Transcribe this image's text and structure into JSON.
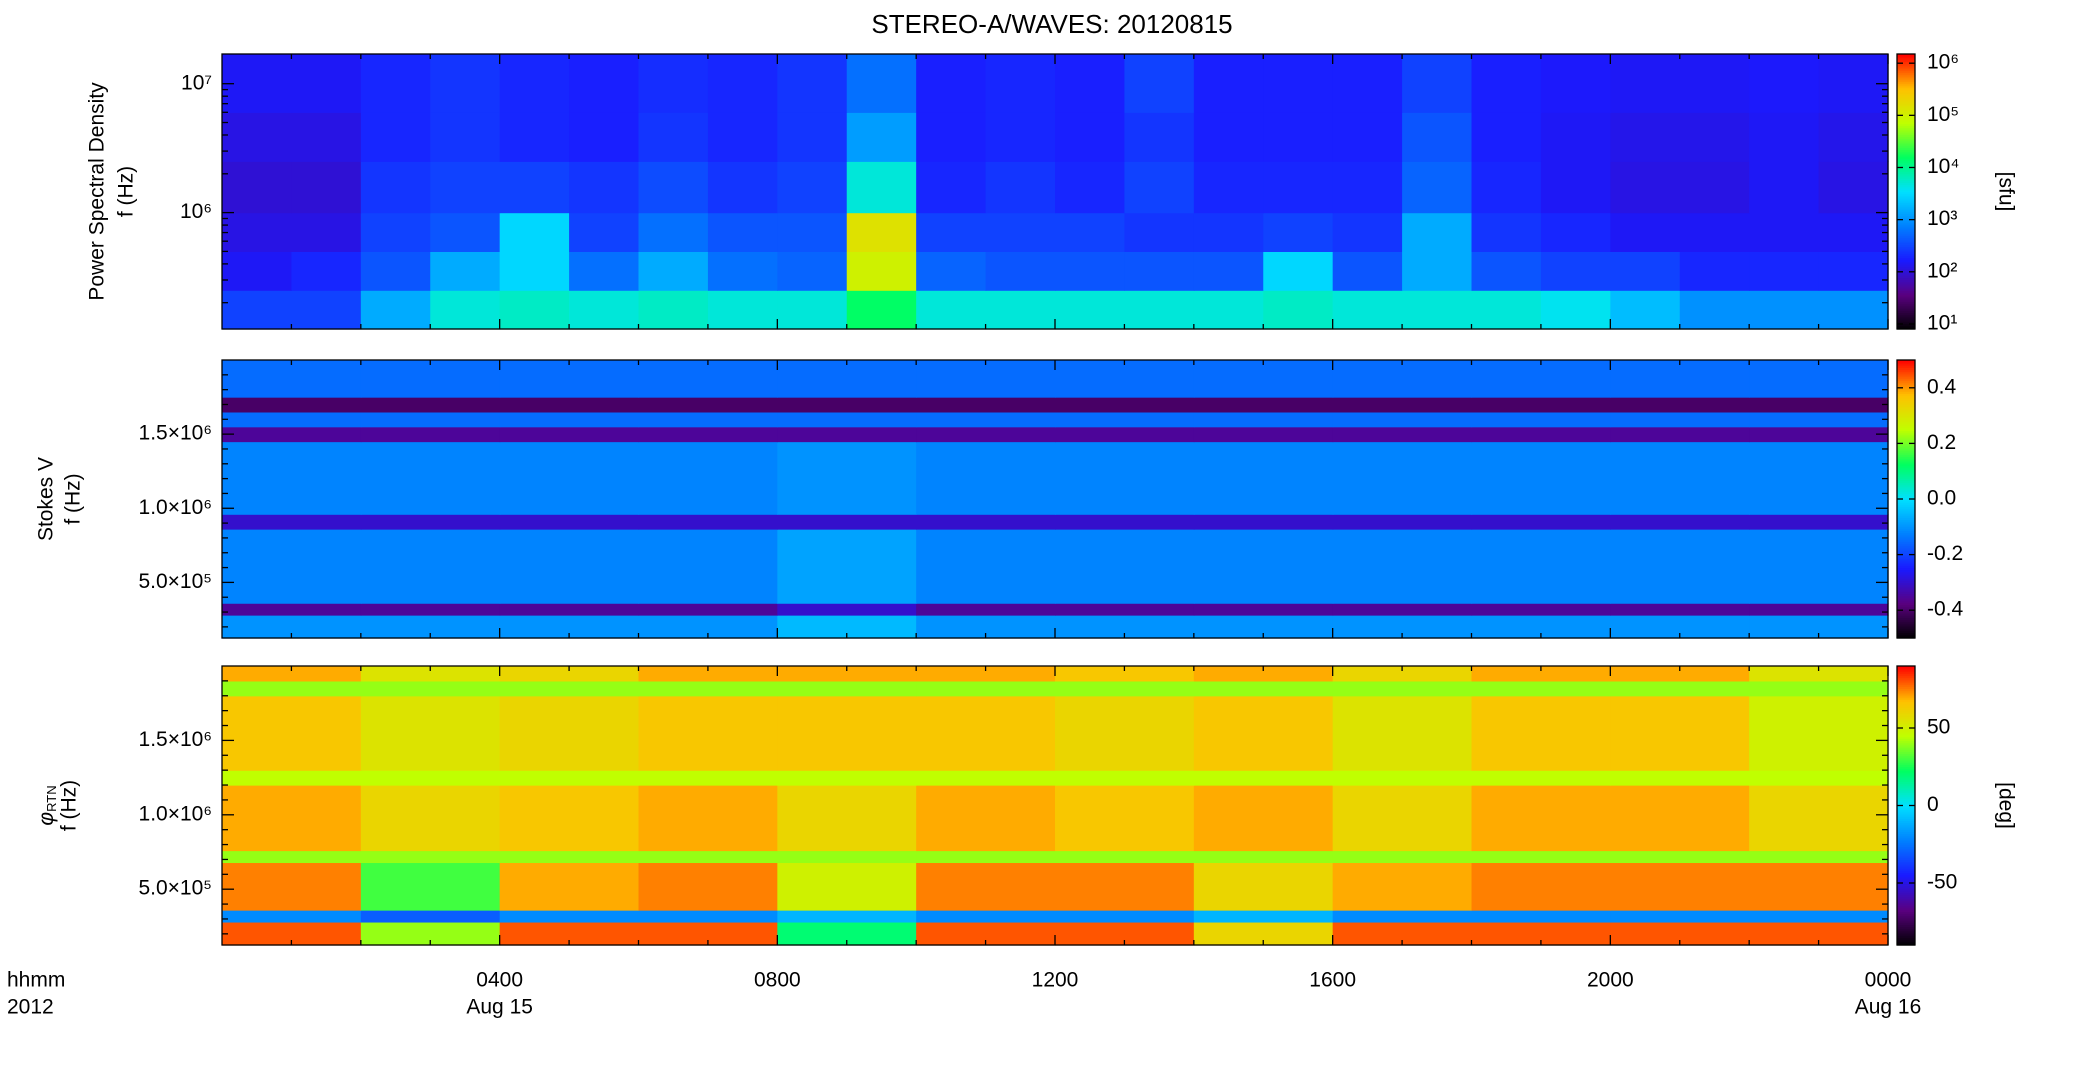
{
  "title": "STEREO-A/WAVES: 20120815",
  "chart_data": [
    {
      "type": "heatmap",
      "ylabel": "Power Spectral Density",
      "yunit": "f (Hz)",
      "xlim": [
        0,
        24
      ],
      "xticks": [
        4,
        8,
        12,
        16,
        20,
        24
      ],
      "ylog": true,
      "ylim": [
        125000,
        17000000
      ],
      "yticks": [
        {
          "value": 1000000,
          "label": "10⁶"
        },
        {
          "value": 10000000,
          "label": "10⁷"
        }
      ],
      "zlog": true,
      "zlim": [
        8,
        1500000
      ],
      "zticks": [
        {
          "value": 10,
          "label": "10¹"
        },
        {
          "value": 100,
          "label": "10²"
        },
        {
          "value": 1000,
          "label": "10³"
        },
        {
          "value": 10000,
          "label": "10⁴"
        },
        {
          "value": 100000,
          "label": "10⁵"
        },
        {
          "value": 1000000,
          "label": "10⁶"
        }
      ],
      "zlabel": "[sfu]",
      "colormap": [
        "#000000",
        "#5a0080",
        "#1a1aff",
        "#0080ff",
        "#00e0ff",
        "#00ff60",
        "#c0ff00",
        "#ffc000",
        "#ff0000"
      ],
      "x_bins": [
        0,
        1,
        2,
        3,
        4,
        5,
        6,
        7,
        8,
        9,
        10,
        11,
        12,
        13,
        14,
        15,
        16,
        17,
        18,
        19,
        20,
        21,
        22,
        23,
        24
      ],
      "y_bins": [
        125000,
        250000,
        500000,
        1000000,
        2500000,
        6000000,
        17000000
      ],
      "z": [
        [
          300,
          300,
          1500,
          5000,
          6000,
          5000,
          6000,
          5000,
          5000,
          15000,
          5000,
          5000,
          5000,
          5000,
          5000,
          6000,
          5000,
          5000,
          5000,
          4000,
          2000,
          1000,
          1000,
          1000
        ],
        [
          150,
          200,
          400,
          1500,
          3000,
          600,
          1500,
          600,
          500,
          100000,
          500,
          400,
          400,
          400,
          400,
          3000,
          400,
          1500,
          400,
          300,
          300,
          200,
          200,
          200
        ],
        [
          120,
          120,
          300,
          400,
          3000,
          300,
          600,
          400,
          400,
          150000,
          300,
          300,
          300,
          250,
          250,
          300,
          250,
          1500,
          250,
          200,
          150,
          150,
          150,
          150
        ],
        [
          100,
          100,
          250,
          300,
          300,
          250,
          350,
          250,
          300,
          5000,
          200,
          250,
          200,
          300,
          200,
          200,
          200,
          500,
          200,
          150,
          120,
          120,
          150,
          120
        ],
        [
          120,
          120,
          200,
          250,
          200,
          180,
          250,
          200,
          250,
          1200,
          180,
          200,
          180,
          250,
          180,
          180,
          180,
          400,
          180,
          150,
          130,
          130,
          150,
          130
        ],
        [
          150,
          150,
          200,
          250,
          200,
          180,
          220,
          200,
          250,
          600,
          180,
          200,
          180,
          300,
          180,
          180,
          180,
          300,
          180,
          160,
          150,
          150,
          160,
          150
        ]
      ]
    },
    {
      "type": "heatmap",
      "ylabel": "Stokes V",
      "yunit": "f (Hz)",
      "xlim": [
        0,
        24
      ],
      "xticks": [
        4,
        8,
        12,
        16,
        20,
        24
      ],
      "ylog": false,
      "ylim": [
        125000,
        2000000
      ],
      "yticks": [
        {
          "value": 500000,
          "label": "5.0×10⁵"
        },
        {
          "value": 1000000,
          "label": "1.0×10⁶"
        },
        {
          "value": 1500000,
          "label": "1.5×10⁶"
        }
      ],
      "zlog": false,
      "zlim": [
        -0.5,
        0.5
      ],
      "zticks": [
        -0.4,
        -0.2,
        {
          "value": 0,
          "label": "0.0"
        },
        0.2,
        0.4
      ],
      "colormap": [
        "#000000",
        "#5a0080",
        "#1a1aff",
        "#0080ff",
        "#00e0ff",
        "#00ff60",
        "#c0ff00",
        "#ffc000",
        "#ff0000"
      ],
      "x_bins": [
        0,
        2,
        4,
        6,
        8,
        10,
        12,
        14,
        16,
        18,
        20,
        22,
        24
      ],
      "y_bins": [
        125000,
        280000,
        360000,
        860000,
        960000,
        1450000,
        1550000,
        1650000,
        1750000,
        2000000
      ],
      "z": [
        [
          -0.1,
          -0.1,
          -0.1,
          -0.1,
          -0.05,
          -0.1,
          -0.1,
          -0.1,
          -0.1,
          -0.1,
          -0.1,
          -0.1
        ],
        [
          -0.35,
          -0.35,
          -0.35,
          -0.35,
          -0.3,
          -0.35,
          -0.35,
          -0.35,
          -0.35,
          -0.35,
          -0.35,
          -0.35
        ],
        [
          -0.12,
          -0.12,
          -0.12,
          -0.12,
          -0.08,
          -0.12,
          -0.12,
          -0.12,
          -0.12,
          -0.12,
          -0.12,
          -0.12
        ],
        [
          -0.3,
          -0.3,
          -0.3,
          -0.3,
          -0.3,
          -0.3,
          -0.3,
          -0.3,
          -0.3,
          -0.3,
          -0.3,
          -0.3
        ],
        [
          -0.12,
          -0.12,
          -0.12,
          -0.12,
          -0.1,
          -0.12,
          -0.12,
          -0.12,
          -0.12,
          -0.12,
          -0.12,
          -0.12
        ],
        [
          -0.35,
          -0.35,
          -0.35,
          -0.35,
          -0.35,
          -0.35,
          -0.35,
          -0.35,
          -0.35,
          -0.35,
          -0.35,
          -0.35
        ],
        [
          -0.15,
          -0.15,
          -0.15,
          -0.15,
          -0.15,
          -0.15,
          -0.15,
          -0.15,
          -0.15,
          -0.15,
          -0.15,
          -0.15
        ],
        [
          -0.4,
          -0.4,
          -0.4,
          -0.4,
          -0.4,
          -0.4,
          -0.4,
          -0.4,
          -0.4,
          -0.4,
          -0.4,
          -0.4
        ],
        [
          -0.15,
          -0.15,
          -0.15,
          -0.15,
          -0.15,
          -0.15,
          -0.15,
          -0.15,
          -0.15,
          -0.15,
          -0.15,
          -0.15
        ]
      ]
    },
    {
      "type": "heatmap",
      "ylabel_symbol": "φ",
      "ylabel_subscript": "RTN",
      "yunit": "f (Hz)",
      "xlim": [
        0,
        24
      ],
      "xticks": [
        {
          "value": 4,
          "label": "0400"
        },
        {
          "value": 8,
          "label": "0800"
        },
        {
          "value": 12,
          "label": "1200"
        },
        {
          "value": 16,
          "label": "1600"
        },
        {
          "value": 20,
          "label": "2000"
        },
        {
          "value": 24,
          "label": "0000"
        }
      ],
      "date_labels": [
        {
          "value": 4,
          "label": "Aug 15"
        },
        {
          "value": 24,
          "label": "Aug 16"
        }
      ],
      "xlabel_lines": [
        "hhmm",
        "2012"
      ],
      "ylog": false,
      "ylim": [
        125000,
        2000000
      ],
      "yticks": [
        {
          "value": 500000,
          "label": "5.0×10⁵"
        },
        {
          "value": 1000000,
          "label": "1.0×10⁶"
        },
        {
          "value": 1500000,
          "label": "1.5×10⁶"
        }
      ],
      "zlog": false,
      "zlim": [
        -90,
        90
      ],
      "zticks": [
        -50,
        0,
        50
      ],
      "zlabel": "[deg]",
      "colormap": [
        "#000000",
        "#5a0080",
        "#1a1aff",
        "#0080ff",
        "#00e0ff",
        "#00ff60",
        "#c0ff00",
        "#ffc000",
        "#ff0000"
      ],
      "x_bins": [
        0,
        2,
        4,
        6,
        8,
        10,
        12,
        14,
        16,
        18,
        20,
        22,
        24
      ],
      "y_bins": [
        125000,
        280000,
        360000,
        680000,
        760000,
        1200000,
        1300000,
        1800000,
        1900000,
        2000000
      ],
      "z": [
        [
          80,
          40,
          80,
          80,
          20,
          80,
          80,
          60,
          80,
          80,
          80,
          80
        ],
        [
          -20,
          -30,
          -20,
          -20,
          -10,
          -20,
          -20,
          -10,
          -20,
          -20,
          -20,
          -20
        ],
        [
          75,
          30,
          70,
          75,
          50,
          75,
          75,
          60,
          70,
          75,
          75,
          75
        ],
        [
          40,
          40,
          40,
          40,
          40,
          40,
          40,
          40,
          40,
          40,
          40,
          40
        ],
        [
          70,
          60,
          65,
          70,
          60,
          70,
          65,
          70,
          60,
          70,
          70,
          60
        ],
        [
          45,
          45,
          45,
          45,
          45,
          45,
          45,
          45,
          45,
          45,
          45,
          45
        ],
        [
          65,
          55,
          60,
          65,
          65,
          65,
          60,
          65,
          55,
          65,
          65,
          50
        ],
        [
          40,
          40,
          40,
          40,
          40,
          40,
          40,
          40,
          40,
          40,
          40,
          40
        ],
        [
          70,
          55,
          60,
          70,
          70,
          70,
          65,
          70,
          60,
          70,
          70,
          55
        ]
      ]
    }
  ]
}
